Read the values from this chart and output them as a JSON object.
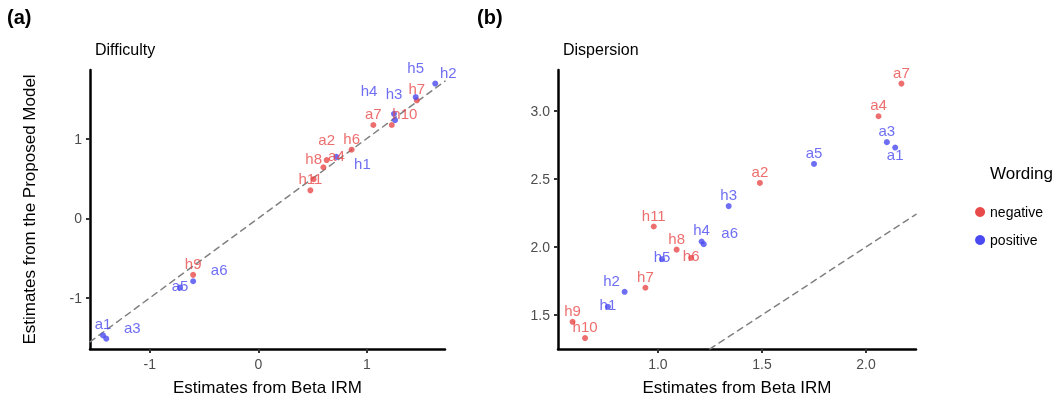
{
  "chart_data": [
    {
      "type": "scatter",
      "title": "(a)",
      "subtitle": "Difficulty",
      "xlabel": "Estimates from Beta IRM",
      "ylabel": "Estimates from the Proposed Model",
      "xlim": [
        -1.55,
        1.72
      ],
      "ylim": [
        -1.64,
        1.86
      ],
      "xticks": [
        -1,
        0,
        1
      ],
      "yticks": [
        -1,
        0,
        1
      ],
      "grid": false,
      "legend": false,
      "series": [
        {
          "color": "#e84a4a",
          "x": [
            -0.6,
            0.48,
            0.51,
            0.6,
            0.63,
            0.86,
            1.06,
            1.23,
            1.46
          ],
          "values": [
            -0.71,
            0.35,
            0.49,
            0.64,
            0.73,
            0.86,
            1.17,
            1.17,
            1.48
          ],
          "value_labels": [
            "h9",
            "h11",
            "h8",
            "a4",
            "a2",
            "h6",
            "a7",
            "h10",
            "h7"
          ]
        },
        {
          "color": "#4a4af0",
          "x": [
            -1.43,
            -1.4,
            -0.72,
            -0.6,
            0.72,
            1.25,
            1.26,
            1.45,
            1.63
          ],
          "values": [
            -1.47,
            -1.51,
            -0.87,
            -0.79,
            0.77,
            1.31,
            1.23,
            1.52,
            1.69
          ],
          "value_labels": [
            "a1",
            "a3",
            "a5",
            "a6",
            "h1",
            "h3",
            "h4",
            "h5",
            "h2"
          ]
        },
        {
          "type": "line",
          "color": "#808080",
          "line_style": "dashed",
          "x": [
            -1.55,
            1.72
          ],
          "values": [
            -1.55,
            1.72
          ]
        }
      ]
    },
    {
      "type": "scatter",
      "title": "(b)",
      "subtitle": "Dispersion",
      "xlabel": "Estimates from Beta IRM",
      "legend_title": "Wording",
      "xlim": [
        0.52,
        2.24
      ],
      "ylim": [
        1.25,
        3.3
      ],
      "xticks": [
        {
          "value": 1,
          "label": "1.0"
        },
        1.5,
        {
          "value": 2,
          "label": "2.0"
        }
      ],
      "yticks": [
        1.5,
        {
          "value": 2,
          "label": "2.0"
        },
        2.5,
        {
          "value": 3,
          "label": "3.0"
        }
      ],
      "grid": false,
      "legend": "right",
      "series": [
        {
          "name": "negative",
          "color": "#e84a4a",
          "x": [
            2.17,
            2.06,
            1.49,
            0.98,
            1.09,
            1.16,
            0.94,
            0.59,
            0.65
          ],
          "values": [
            3.2,
            2.96,
            2.47,
            2.15,
            1.98,
            1.92,
            1.7,
            1.45,
            1.33
          ],
          "value_labels": [
            "a7",
            "a4",
            "a2",
            "h11",
            "h8",
            "h6",
            "h7",
            "h9",
            "h10"
          ]
        },
        {
          "name": "positive",
          "color": "#4a4af0",
          "x": [
            2.1,
            2.14,
            1.75,
            1.34,
            1.21,
            1.22,
            1.02,
            0.84,
            0.76
          ],
          "values": [
            2.77,
            2.73,
            2.61,
            2.3,
            2.04,
            2.02,
            1.91,
            1.67,
            1.56
          ],
          "value_labels": [
            "a3",
            "a1",
            "a5",
            "h3",
            "h4",
            "a6",
            "h5",
            "h2",
            "h1"
          ]
        },
        {
          "type": "line",
          "color": "#808080",
          "line_style": "dashed",
          "x": [
            1.25,
            2.24
          ],
          "values": [
            1.25,
            2.24
          ]
        }
      ]
    }
  ]
}
